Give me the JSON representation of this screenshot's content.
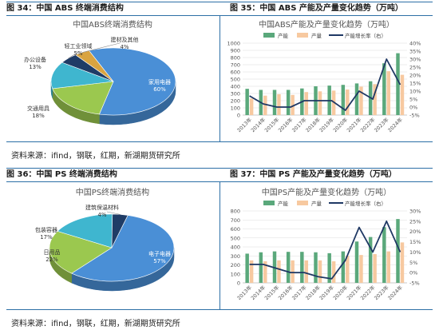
{
  "panels": {
    "p34": {
      "label": "图 34：中国 ABS 终端消费结构"
    },
    "p35": {
      "label": "图 35：中国 ABS 产能及产量变化趋势（万吨）"
    },
    "p36": {
      "label": "图 36：中国 PS 终端消费结构"
    },
    "p37": {
      "label": "图 37：中国 PS 产能及产量变化趋势（万吨）"
    }
  },
  "sources": {
    "top": "资料来源：ifind，钢联，红期，新湖期货研究所",
    "bottom": "资料来源：ifind，钢联，红期，新湖期货研究所"
  },
  "colors": {
    "blue": "#4a8fd6",
    "green": "#9bc84f",
    "cyan": "#3fb6cf",
    "navy": "#1f3c66",
    "gold": "#d9a441",
    "bar_green": "#5aa87b",
    "bar_peach": "#f7c9a0",
    "line": "#1f3864",
    "rule": "#2c6fa6",
    "grid": "#dddddd",
    "axis_text": "#555555"
  },
  "chart_data": [
    {
      "id": "abs_consumption",
      "type": "pie",
      "title": "中国ABS终端消费结构",
      "slices": [
        {
          "name": "家用电器",
          "value": 60,
          "label": "家用电器\n60%",
          "color": "#4a8fd6"
        },
        {
          "name": "交通用具",
          "value": 18,
          "label": "交通用具\n18%",
          "color": "#9bc84f"
        },
        {
          "name": "办公设备",
          "value": 13,
          "label": "办公设备\n13%",
          "color": "#3fb6cf"
        },
        {
          "name": "轻工业领域",
          "value": 5,
          "label": "轻工业领域\n5%",
          "color": "#1f3c66"
        },
        {
          "name": "建材及其他",
          "value": 4,
          "label": "建材及其他\n4%",
          "color": "#d9a441"
        }
      ]
    },
    {
      "id": "abs_capacity",
      "type": "bar",
      "title": "中国ABS产能及产量变化趋势（万吨）",
      "categories": [
        "2013年",
        "2014年",
        "2015年",
        "2016年",
        "2017年",
        "2018年",
        "2019年",
        "2020年",
        "2021年",
        "2022年",
        "2023年",
        "2024年"
      ],
      "series": [
        {
          "name": "产能",
          "type": "bar",
          "axis": "left",
          "color": "#5aa87b",
          "values": [
            365,
            350,
            350,
            350,
            370,
            400,
            410,
            420,
            440,
            470,
            720,
            860
          ]
        },
        {
          "name": "产量",
          "type": "bar",
          "axis": "left",
          "color": "#f7c9a0",
          "values": [
            230,
            270,
            290,
            280,
            320,
            330,
            340,
            355,
            395,
            430,
            610,
            560
          ]
        },
        {
          "name": "产能增长率（右）",
          "type": "line",
          "axis": "right",
          "color": "#1f3864",
          "values": [
            7,
            2,
            0,
            0,
            4,
            4,
            4,
            -2,
            10,
            5,
            30,
            14
          ]
        }
      ],
      "yleft": {
        "min": 0,
        "max": 1000,
        "step": 100
      },
      "yright": {
        "min": -5,
        "max": 40,
        "step": 5,
        "suffix": "%"
      }
    },
    {
      "id": "ps_consumption",
      "type": "pie",
      "title": "中国PS终端消费结构",
      "slices": [
        {
          "name": "电子电器",
          "value": 57,
          "label": "电子电器\n57%",
          "color": "#4a8fd6"
        },
        {
          "name": "日用品",
          "value": 22,
          "label": "日用品\n22%",
          "color": "#9bc84f"
        },
        {
          "name": "包装容器",
          "value": 17,
          "label": "包装容器\n17%",
          "color": "#3fb6cf"
        },
        {
          "name": "建筑保温材料",
          "value": 4,
          "label": "建筑保温材料\n4%",
          "color": "#1f3c66"
        }
      ]
    },
    {
      "id": "ps_capacity",
      "type": "bar",
      "title": "中国PS产能及产量变化趋势（万吨）",
      "categories": [
        "2013年",
        "2014年",
        "2015年",
        "2016年",
        "2017年",
        "2018年",
        "2019年",
        "2020年",
        "2021年",
        "2022年",
        "2023年",
        "2024年"
      ],
      "series": [
        {
          "name": "产能",
          "type": "bar",
          "axis": "left",
          "color": "#5aa87b",
          "values": [
            325,
            340,
            350,
            345,
            345,
            340,
            330,
            350,
            460,
            510,
            620,
            710
          ]
        },
        {
          "name": "产量",
          "type": "bar",
          "axis": "left",
          "color": "#f7c9a0",
          "values": [
            250,
            240,
            250,
            250,
            250,
            250,
            240,
            300,
            310,
            320,
            350,
            450
          ]
        },
        {
          "name": "产能增长率（右）",
          "type": "line",
          "axis": "right",
          "color": "#1f3864",
          "values": [
            4,
            4,
            2,
            0,
            0,
            -2,
            -3,
            6,
            22,
            10,
            25,
            10
          ]
        }
      ],
      "yleft": {
        "min": 0,
        "max": 800,
        "step": 100
      },
      "yright": {
        "min": -5,
        "max": 30,
        "step": 5,
        "suffix": "%"
      }
    }
  ]
}
